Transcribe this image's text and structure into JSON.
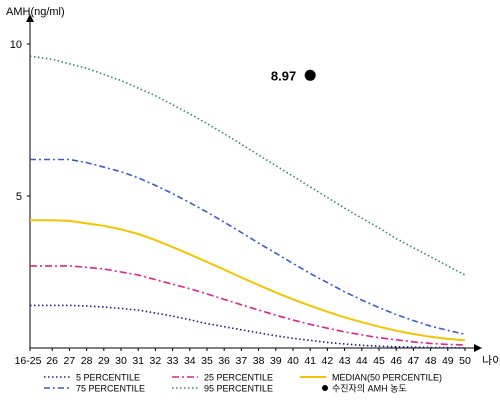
{
  "chart_data": {
    "type": "line",
    "ylabel": "AMH(ng/ml)",
    "xlabel": "나이",
    "ylim": [
      0,
      11
    ],
    "y_ticks": [
      "10",
      "5"
    ],
    "x": [
      "16-25",
      "26",
      "27",
      "28",
      "29",
      "30",
      "31",
      "32",
      "33",
      "34",
      "35",
      "36",
      "37",
      "38",
      "39",
      "40",
      "41",
      "42",
      "43",
      "44",
      "45",
      "46",
      "47",
      "48",
      "49",
      "50"
    ],
    "grid": false,
    "legend_position": "bottom",
    "series": [
      {
        "name": "5 PERCENTILE",
        "color": "#1a1a80",
        "values": [
          1.4,
          1.4,
          1.4,
          1.38,
          1.35,
          1.3,
          1.25,
          1.15,
          1.05,
          0.93,
          0.8,
          0.7,
          0.6,
          0.5,
          0.4,
          0.32,
          0.25,
          0.18,
          0.13,
          0.09,
          0.06,
          0.04,
          0.03,
          0.02,
          0.01,
          0.0
        ]
      },
      {
        "name": "25 PERCENTILE",
        "color": "#e0208c",
        "values": [
          2.7,
          2.7,
          2.7,
          2.65,
          2.6,
          2.5,
          2.4,
          2.25,
          2.1,
          1.95,
          1.78,
          1.6,
          1.42,
          1.25,
          1.08,
          0.92,
          0.78,
          0.65,
          0.53,
          0.43,
          0.34,
          0.27,
          0.2,
          0.15,
          0.12,
          0.1
        ]
      },
      {
        "name": "MEDIAN(50 PERCENTILE)",
        "color": "#f5c400",
        "values": [
          4.2,
          4.2,
          4.18,
          4.1,
          4.02,
          3.9,
          3.75,
          3.55,
          3.32,
          3.08,
          2.83,
          2.58,
          2.32,
          2.07,
          1.83,
          1.6,
          1.39,
          1.19,
          1.01,
          0.85,
          0.7,
          0.57,
          0.46,
          0.37,
          0.3,
          0.25
        ]
      },
      {
        "name": "75 PERCENTILE",
        "color": "#3a5cc4",
        "values": [
          6.2,
          6.2,
          6.2,
          6.1,
          5.95,
          5.8,
          5.6,
          5.35,
          5.08,
          4.78,
          4.47,
          4.14,
          3.8,
          3.45,
          3.12,
          2.78,
          2.45,
          2.15,
          1.85,
          1.58,
          1.33,
          1.1,
          0.9,
          0.72,
          0.58,
          0.45
        ]
      },
      {
        "name": "95 PERCENTILE",
        "color": "#2e8b57",
        "values": [
          9.6,
          9.5,
          9.35,
          9.2,
          9.0,
          8.8,
          8.55,
          8.3,
          8.0,
          7.7,
          7.38,
          7.05,
          6.7,
          6.35,
          6.0,
          5.65,
          5.3,
          4.95,
          4.6,
          4.27,
          3.95,
          3.6,
          3.3,
          3.0,
          2.7,
          2.4
        ]
      }
    ],
    "marker": {
      "label": "8.97",
      "x": "41",
      "y": 8.97,
      "legend_label": "수진자의 AMH 농도",
      "color": "#000000"
    },
    "legend": [
      {
        "label": "5 PERCENTILE",
        "color": "#1a1a80",
        "dash": "1.5,2.5"
      },
      {
        "label": "25 PERCENTILE",
        "color": "#e0208c",
        "dash": "7,3,2,3"
      },
      {
        "label": "MEDIAN(50 PERCENTILE)",
        "color": "#f5c400",
        "dash": ""
      },
      {
        "label": "75 PERCENTILE",
        "color": "#3a5cc4",
        "dash": "6,3,2,3"
      },
      {
        "label": "95 PERCENTILE",
        "color": "#2e8b57",
        "dash": "1.5,2.5"
      },
      {
        "label": "수진자의 AMH 농도",
        "color": "#000000",
        "dash": "dot"
      }
    ]
  }
}
